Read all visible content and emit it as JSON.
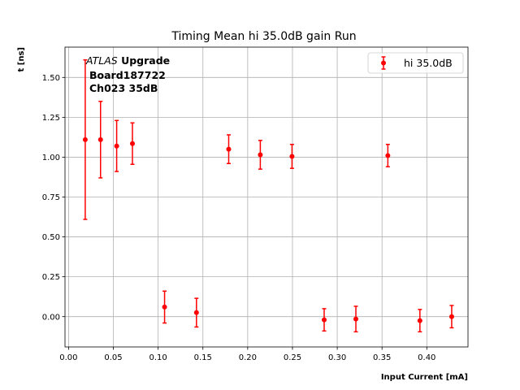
{
  "chart_data": {
    "type": "scatter",
    "title": "Timing Mean hi 35.0dB gain Run",
    "xlabel": "Input Current [mA]",
    "ylabel": "t [ns]",
    "xlim": [
      -0.004,
      0.446
    ],
    "ylim": [
      -0.19,
      1.69
    ],
    "x_ticks": [
      0.0,
      0.05,
      0.1,
      0.15,
      0.2,
      0.25,
      0.3,
      0.35,
      0.4
    ],
    "x_tick_labels": [
      "0.00",
      "0.05",
      "0.10",
      "0.15",
      "0.20",
      "0.25",
      "0.30",
      "0.35",
      "0.40"
    ],
    "y_ticks": [
      0.0,
      0.25,
      0.5,
      0.75,
      1.0,
      1.25,
      1.5
    ],
    "y_tick_labels": [
      "0.00",
      "0.25",
      "0.50",
      "0.75",
      "1.00",
      "1.25",
      "1.50"
    ],
    "grid": true,
    "legend_position": "top-right",
    "annotation": {
      "line1_italic": "ATLAS",
      "line1_bold": " Upgrade",
      "line2": "Board187722",
      "line3": "Ch023 35dB"
    },
    "series": [
      {
        "name": "hi 35.0dB",
        "color": "#ff0000",
        "x": [
          0.0186,
          0.0357,
          0.0537,
          0.0713,
          0.1072,
          0.1428,
          0.1788,
          0.2141,
          0.2495,
          0.2854,
          0.3208,
          0.3565,
          0.3923,
          0.4278
        ],
        "y": [
          1.11,
          1.11,
          1.07,
          1.085,
          0.06,
          0.025,
          1.05,
          1.015,
          1.005,
          -0.02,
          -0.015,
          1.01,
          -0.025,
          0.0
        ],
        "err": [
          0.5,
          0.24,
          0.16,
          0.13,
          0.1,
          0.09,
          0.09,
          0.09,
          0.075,
          0.07,
          0.08,
          0.07,
          0.07,
          0.07
        ]
      }
    ]
  }
}
